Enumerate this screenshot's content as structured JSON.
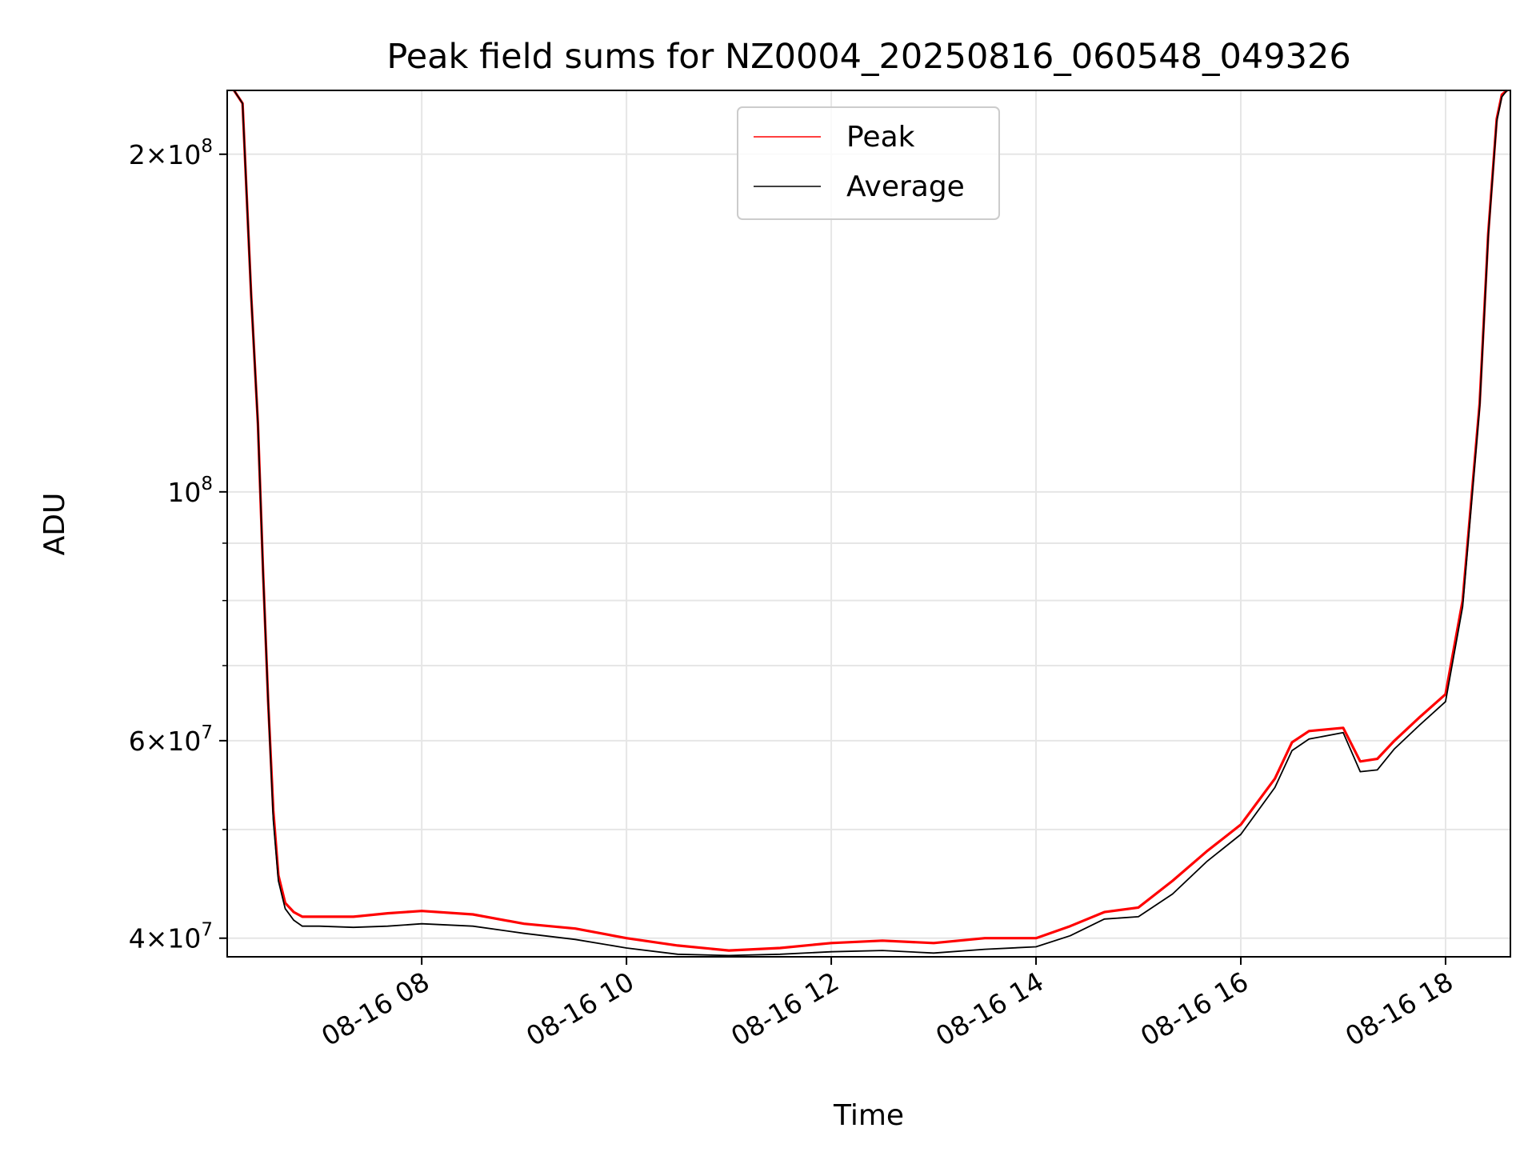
{
  "chart_data": {
    "type": "line",
    "title": "Peak field sums for NZ0004_20250816_060548_049326",
    "xlabel": "Time",
    "ylabel": "ADU",
    "y_scale": "log",
    "ylim": [
      38500000,
      228000000
    ],
    "xlim": [
      "2025-08-16 06:06",
      "2025-08-16 18:38"
    ],
    "grid": true,
    "legend": {
      "placement": "top-center"
    },
    "x_ticks": [
      {
        "value": "2025-08-16 08:00",
        "label": "08-16 08"
      },
      {
        "value": "2025-08-16 10:00",
        "label": "08-16 10"
      },
      {
        "value": "2025-08-16 12:00",
        "label": "08-16 12"
      },
      {
        "value": "2025-08-16 14:00",
        "label": "08-16 14"
      },
      {
        "value": "2025-08-16 16:00",
        "label": "08-16 16"
      },
      {
        "value": "2025-08-16 18:00",
        "label": "08-16 18"
      }
    ],
    "y_ticks_major": [
      {
        "value": 40000000,
        "base": "4×10",
        "exp": "7"
      },
      {
        "value": 60000000,
        "base": "6×10",
        "exp": "7"
      },
      {
        "value": 100000000,
        "base": "10",
        "exp": "8"
      },
      {
        "value": 200000000,
        "base": "2×10",
        "exp": "8"
      }
    ],
    "y_ticks_minor": [
      50000000,
      70000000,
      80000000,
      90000000
    ],
    "series": [
      {
        "name": "Peak",
        "color": "#ff0000",
        "x": [
          "2025-08-16 06:10",
          "2025-08-16 06:15",
          "2025-08-16 06:20",
          "2025-08-16 06:24",
          "2025-08-16 06:27",
          "2025-08-16 06:30",
          "2025-08-16 06:33",
          "2025-08-16 06:36",
          "2025-08-16 06:40",
          "2025-08-16 06:45",
          "2025-08-16 06:50",
          "2025-08-16 07:00",
          "2025-08-16 07:20",
          "2025-08-16 07:40",
          "2025-08-16 08:00",
          "2025-08-16 08:30",
          "2025-08-16 09:00",
          "2025-08-16 09:30",
          "2025-08-16 10:00",
          "2025-08-16 10:30",
          "2025-08-16 11:00",
          "2025-08-16 11:30",
          "2025-08-16 12:00",
          "2025-08-16 12:30",
          "2025-08-16 13:00",
          "2025-08-16 13:30",
          "2025-08-16 14:00",
          "2025-08-16 14:20",
          "2025-08-16 14:40",
          "2025-08-16 15:00",
          "2025-08-16 15:20",
          "2025-08-16 15:40",
          "2025-08-16 16:00",
          "2025-08-16 16:20",
          "2025-08-16 16:30",
          "2025-08-16 16:40",
          "2025-08-16 17:00",
          "2025-08-16 17:10",
          "2025-08-16 17:20",
          "2025-08-16 17:30",
          "2025-08-16 17:45",
          "2025-08-16 18:00",
          "2025-08-16 18:10",
          "2025-08-16 18:20",
          "2025-08-16 18:25",
          "2025-08-16 18:30",
          "2025-08-16 18:33",
          "2025-08-16 18:36"
        ],
        "values": [
          228000000,
          222000000,
          150000000,
          115000000,
          85000000,
          65000000,
          52000000,
          45500000,
          43000000,
          42200000,
          41800000,
          41800000,
          41800000,
          42100000,
          42300000,
          42000000,
          41200000,
          40800000,
          40000000,
          39400000,
          39000000,
          39200000,
          39600000,
          39800000,
          39600000,
          40000000,
          40000000,
          41000000,
          42200000,
          42600000,
          45000000,
          47800000,
          50500000,
          55500000,
          59800000,
          61200000,
          61600000,
          57500000,
          57800000,
          60000000,
          63000000,
          66000000,
          80000000,
          120000000,
          170000000,
          215000000,
          226000000,
          228000000
        ]
      },
      {
        "name": "Average",
        "color": "#000000",
        "x": [
          "2025-08-16 06:10",
          "2025-08-16 06:15",
          "2025-08-16 06:20",
          "2025-08-16 06:24",
          "2025-08-16 06:27",
          "2025-08-16 06:30",
          "2025-08-16 06:33",
          "2025-08-16 06:36",
          "2025-08-16 06:40",
          "2025-08-16 06:45",
          "2025-08-16 06:50",
          "2025-08-16 07:00",
          "2025-08-16 07:20",
          "2025-08-16 07:40",
          "2025-08-16 08:00",
          "2025-08-16 08:30",
          "2025-08-16 09:00",
          "2025-08-16 09:30",
          "2025-08-16 10:00",
          "2025-08-16 10:30",
          "2025-08-16 11:00",
          "2025-08-16 11:30",
          "2025-08-16 12:00",
          "2025-08-16 12:30",
          "2025-08-16 13:00",
          "2025-08-16 13:30",
          "2025-08-16 14:00",
          "2025-08-16 14:20",
          "2025-08-16 14:40",
          "2025-08-16 15:00",
          "2025-08-16 15:20",
          "2025-08-16 15:40",
          "2025-08-16 16:00",
          "2025-08-16 16:20",
          "2025-08-16 16:30",
          "2025-08-16 16:40",
          "2025-08-16 17:00",
          "2025-08-16 17:10",
          "2025-08-16 17:20",
          "2025-08-16 17:30",
          "2025-08-16 17:45",
          "2025-08-16 18:00",
          "2025-08-16 18:10",
          "2025-08-16 18:20",
          "2025-08-16 18:25",
          "2025-08-16 18:30",
          "2025-08-16 18:33",
          "2025-08-16 18:36"
        ],
        "values": [
          228000000,
          222000000,
          150000000,
          115000000,
          85000000,
          65000000,
          51000000,
          45000000,
          42500000,
          41500000,
          41000000,
          41000000,
          40900000,
          41000000,
          41200000,
          41000000,
          40400000,
          39900000,
          39200000,
          38700000,
          38600000,
          38700000,
          38900000,
          39000000,
          38800000,
          39100000,
          39300000,
          40200000,
          41600000,
          41800000,
          43800000,
          46800000,
          49500000,
          54500000,
          58800000,
          60200000,
          61000000,
          56300000,
          56500000,
          59000000,
          62000000,
          65000000,
          79000000,
          119000000,
          169000000,
          214000000,
          225000000,
          228000000
        ]
      }
    ]
  }
}
